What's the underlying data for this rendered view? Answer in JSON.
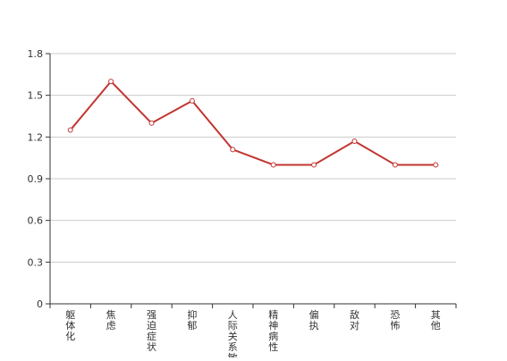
{
  "chart_data": {
    "type": "line",
    "categories": [
      "躯体化",
      "焦虑",
      "强迫症状",
      "抑郁",
      "人际关系敏感",
      "精神病性",
      "偏执",
      "敌对",
      "恐怖",
      "其他"
    ],
    "series": [
      {
        "values": [
          1.25,
          1.6,
          1.3,
          1.46,
          1.11,
          1.0,
          1.0,
          1.17,
          1.0,
          1.0
        ]
      }
    ],
    "yticks": [
      "0",
      "0.3",
      "0.6",
      "0.9",
      "1.2",
      "1.5",
      "1.8"
    ],
    "ylim": [
      0,
      1.8
    ],
    "grid": true,
    "colors": {
      "line": "#c23531",
      "grid": "#cccccc",
      "axis": "#333333",
      "marker_fill": "#ffffff"
    }
  }
}
